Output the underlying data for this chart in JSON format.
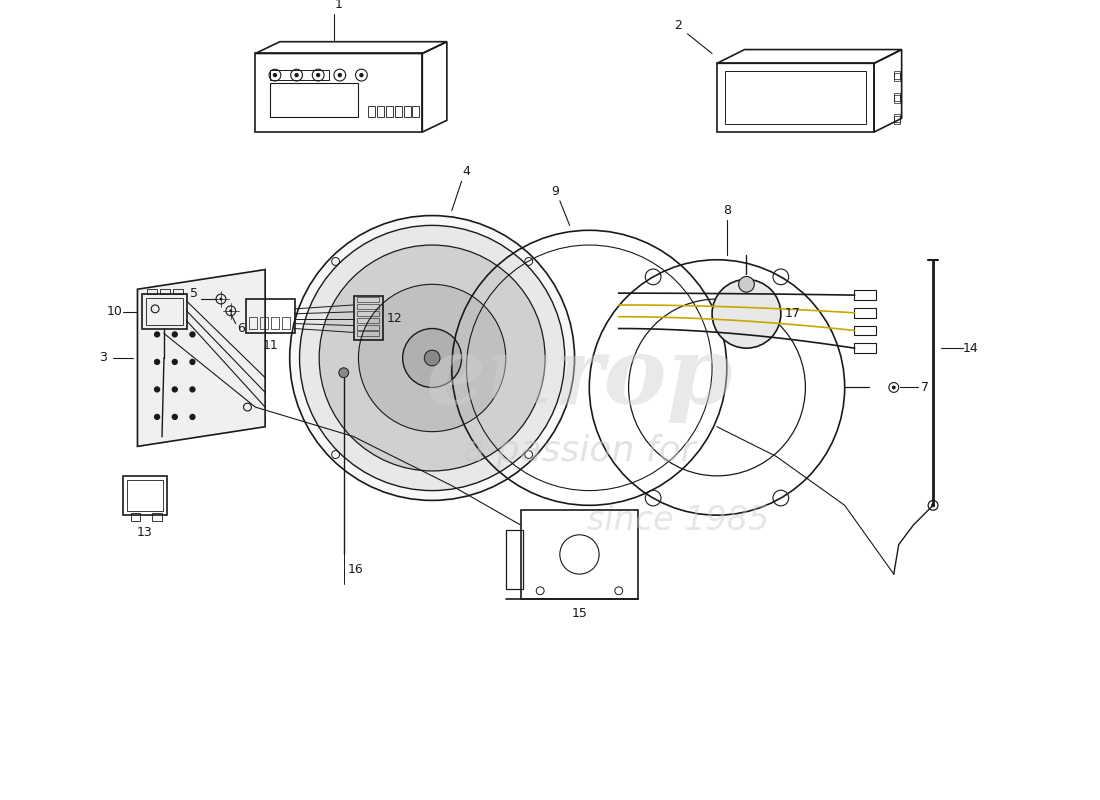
{
  "title": "",
  "background_color": "#ffffff",
  "line_color": "#1a1a1a",
  "watermark_text1": "europ",
  "watermark_text2": "a passion for",
  "watermark_year": "since 1985",
  "part_labels": [
    "1",
    "2",
    "3",
    "4",
    "5",
    "6",
    "7",
    "8",
    "9",
    "10",
    "11",
    "12",
    "13",
    "14",
    "15",
    "16",
    "17"
  ],
  "fig_width": 11.0,
  "fig_height": 8.0,
  "dpi": 100
}
